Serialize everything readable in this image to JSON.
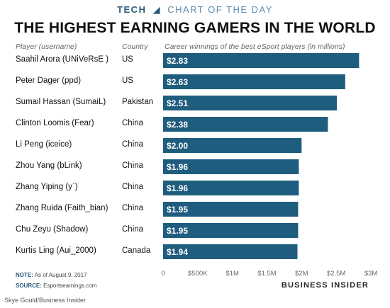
{
  "brand": {
    "tech": "TECH",
    "chart_of_day": "CHART OF THE DAY"
  },
  "headers": {
    "player": "Player (username)",
    "country": "Country",
    "value": "Career winnings of the best eSport players (in millions)"
  },
  "notes": {
    "note_label": "NOTE:",
    "note_text": "As of August 9, 2017",
    "source_label": "SOURCE:",
    "source_text": "Esportsearnings.com"
  },
  "publisher": "BUSINESS INSIDER",
  "credit": "Skye Gould/Business Insider",
  "colors": {
    "bar": "#1f5d7e",
    "bar_label": "#ffffff"
  },
  "chart_data": {
    "type": "bar",
    "orientation": "horizontal",
    "title": "THE HIGHEST EARNING GAMERS IN THE WORLD",
    "categories": [
      "Saahil Arora (UNiVeRsE )",
      "Peter Dager (ppd)",
      "Sumail Hassan (SumaiL)",
      "Clinton Loomis (Fear)",
      "Li Peng (iceice)",
      "Zhou Yang (bLink)",
      "Zhang Yiping (y`)",
      "Zhang Ruida (Faith_bian)",
      "Chu Zeyu (Shadow)",
      "Kurtis Ling (Aui_2000)"
    ],
    "countries": [
      "US",
      "US",
      "Pakistan",
      "China",
      "China",
      "China",
      "China",
      "China",
      "China",
      "Canada"
    ],
    "values": [
      2.83,
      2.63,
      2.51,
      2.38,
      2.0,
      1.96,
      1.96,
      1.95,
      1.95,
      1.94
    ],
    "value_labels": [
      "$2.83",
      "$2.63",
      "$2.51",
      "$2.38",
      "$2.00",
      "$1.96",
      "$1.96",
      "$1.95",
      "$1.95",
      "$1.94"
    ],
    "xlim": [
      0,
      3
    ],
    "x_ticks": [
      0,
      0.5,
      1,
      1.5,
      2,
      2.5,
      3
    ],
    "x_tick_labels": [
      "0",
      "$500K",
      "$1M",
      "$1.5M",
      "$2M",
      "$2.5M",
      "$3M"
    ],
    "xlabel": "",
    "ylabel": "",
    "grid": false,
    "legend": "none"
  }
}
